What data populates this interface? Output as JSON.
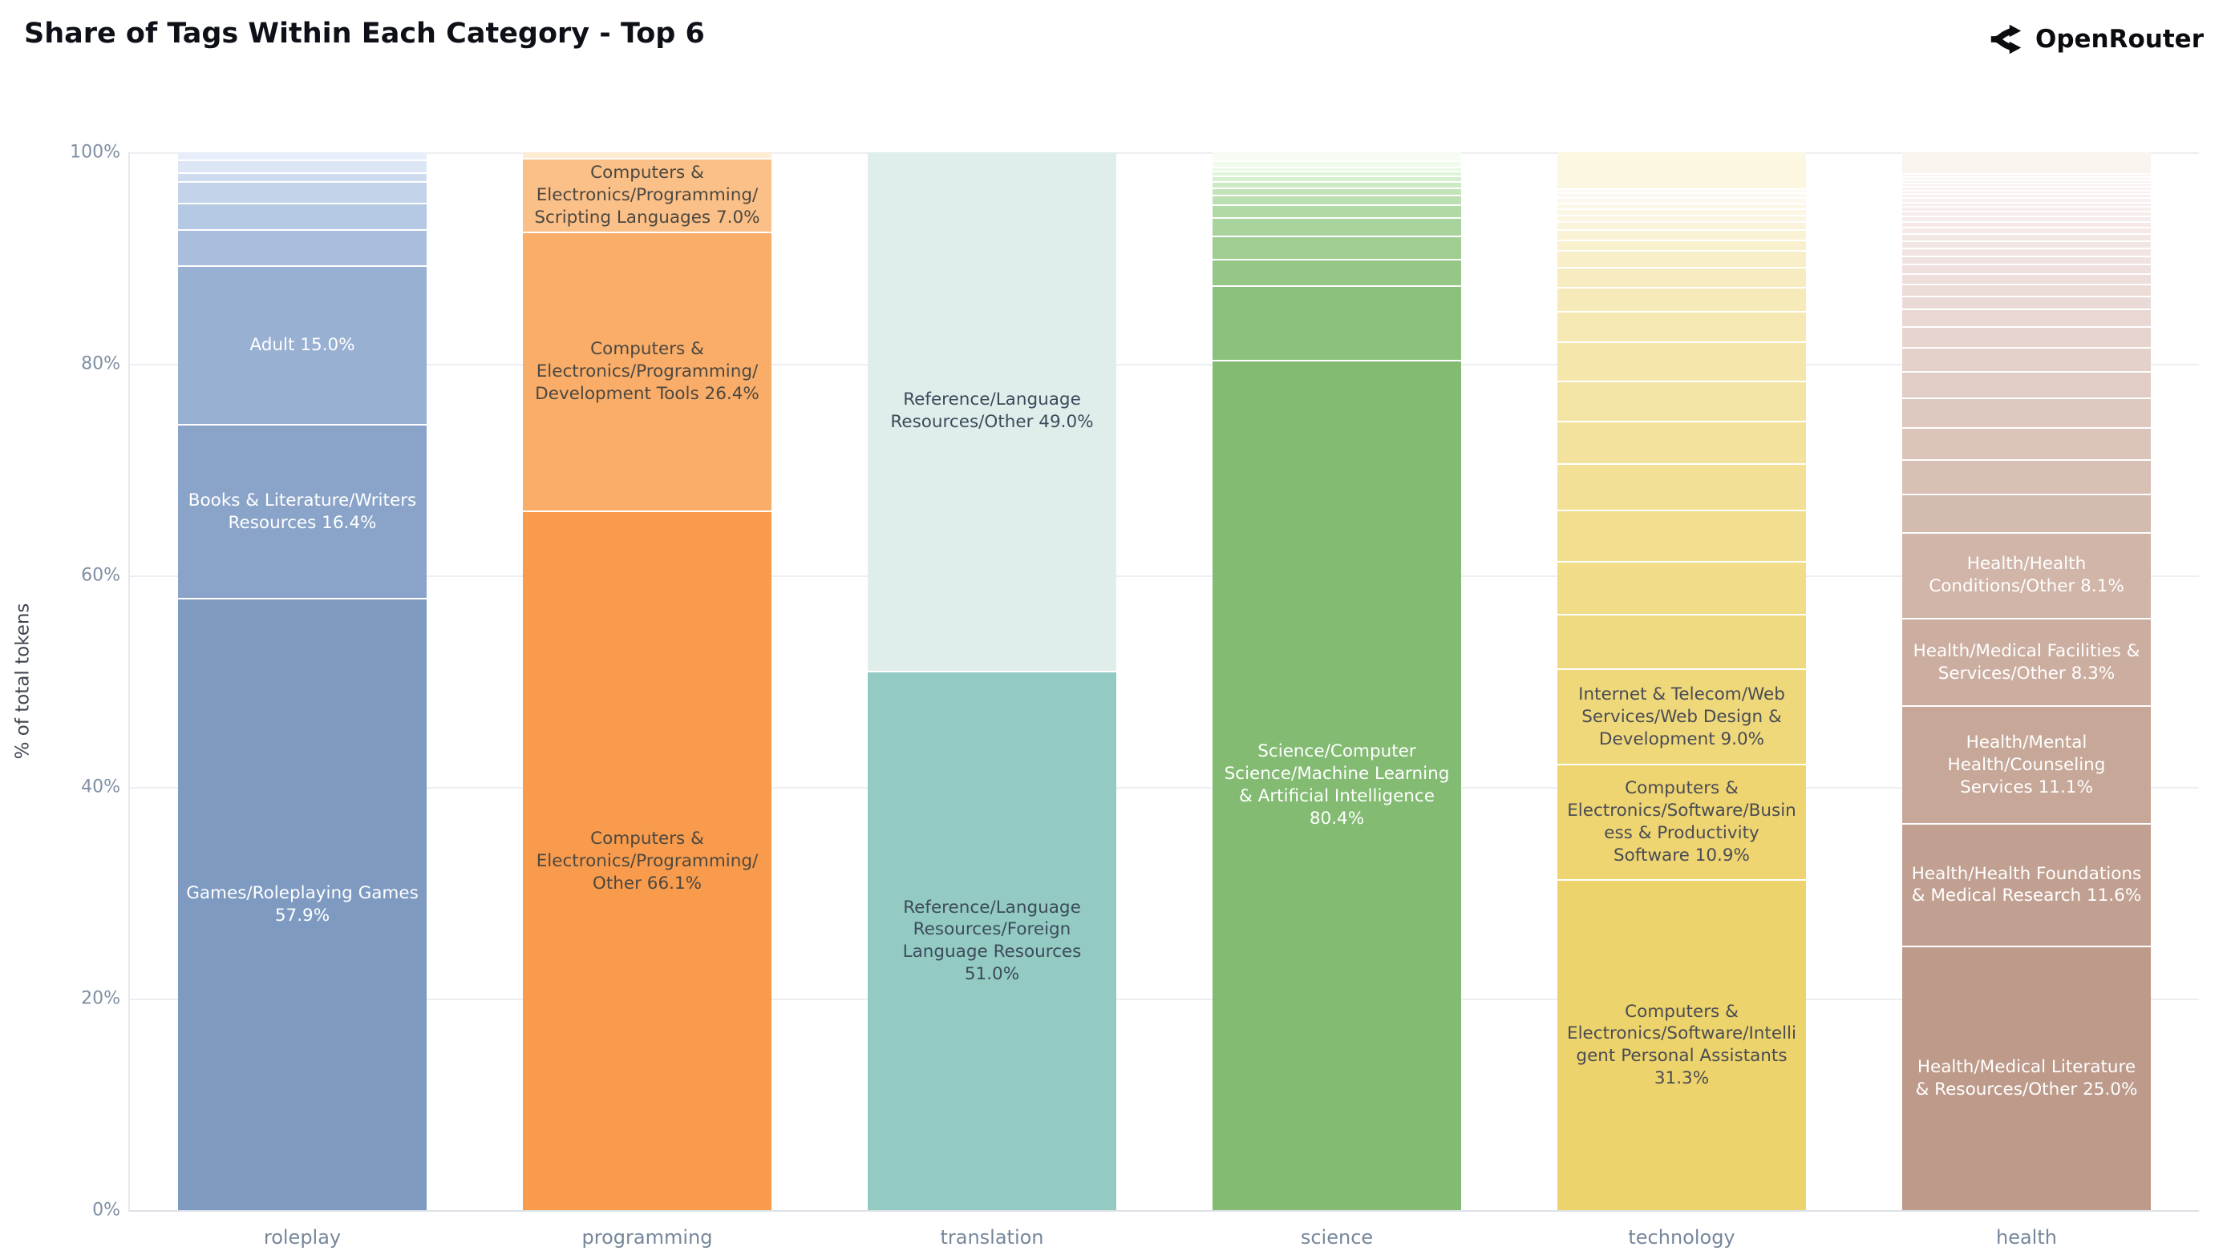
{
  "header": {
    "title": "Share of Tags Within Each Category - Top 6",
    "brand": "OpenRouter"
  },
  "axes": {
    "ylabel": "% of total tokens",
    "yticks": [
      {
        "label": "0%",
        "value": 0
      },
      {
        "label": "20%",
        "value": 20
      },
      {
        "label": "40%",
        "value": 40
      },
      {
        "label": "60%",
        "value": 60
      },
      {
        "label": "80%",
        "value": 80
      },
      {
        "label": "100%",
        "value": 100
      }
    ],
    "gridline_values": [
      20,
      40,
      60,
      80,
      100
    ]
  },
  "colors": {
    "background": "#ffffff",
    "gridline": "#eceef3",
    "separator": "#ffffff",
    "tick_text": "#7f8fa4",
    "category_text": "#76879b",
    "title_text": "#0d1117"
  },
  "chart_data": {
    "type": "bar",
    "stacked": true,
    "normalized_percent": true,
    "title": "Share of Tags Within Each Category - Top 6",
    "ylabel": "% of total tokens",
    "ylim": [
      0,
      100
    ],
    "grid": true,
    "legend": false,
    "categories": [
      "roleplay",
      "programming",
      "translation",
      "science",
      "technology",
      "health"
    ],
    "note": "Segments listed bottom-to-top. Unlabeled segment values estimated from pixel heights.",
    "bars": [
      {
        "category": "roleplay",
        "segments": [
          {
            "label": "Games/Roleplaying Games 57.9%",
            "value": 57.9,
            "color": "#7e9ac1",
            "text": "#ffffff"
          },
          {
            "label": "Books & Literature/Writers Resources 16.4%",
            "value": 16.4,
            "color": "#8aa4c9",
            "text": "#ffffff"
          },
          {
            "label": "Adult 15.0%",
            "value": 15.0,
            "color": "#98b0d2",
            "text": "#ffffff"
          },
          {
            "label": "",
            "value": 3.4,
            "color": "#a9bedd"
          },
          {
            "label": "",
            "value": 2.5,
            "color": "#b6c9e4"
          },
          {
            "label": "",
            "value": 2.1,
            "color": "#c3d3ea"
          },
          {
            "label": "",
            "value": 0.8,
            "color": "#cfdcef"
          },
          {
            "label": "",
            "value": 1.2,
            "color": "#dce6f4"
          },
          {
            "label": "",
            "value": 0.7,
            "color": "#e8eef9"
          }
        ]
      },
      {
        "category": "programming",
        "segments": [
          {
            "label": "Computers & Electronics/Programming/Other 66.1%",
            "value": 66.1,
            "color": "#f89b4c",
            "text": "#4d4840"
          },
          {
            "label": "Computers & Electronics/Programming/Development Tools 26.4%",
            "value": 26.4,
            "color": "#f9ad69",
            "text": "#4d4840"
          },
          {
            "label": "Computers & Electronics/Programming/Scripting Languages 7.0%",
            "value": 7.0,
            "color": "#fbc088",
            "text": "#4d4840"
          },
          {
            "label": "",
            "value": 0.5,
            "color": "#fdebd2"
          }
        ]
      },
      {
        "category": "translation",
        "segments": [
          {
            "label": "Reference/Language Resources/Foreign Language Resources 51.0%",
            "value": 51.0,
            "color": "#93cbc3",
            "text": "#3c4b5b"
          },
          {
            "label": "Reference/Language Resources/Other 49.0%",
            "value": 49.0,
            "color": "#dfeeeb",
            "text": "#3c4b5b"
          }
        ]
      },
      {
        "category": "science",
        "segments": [
          {
            "label": "Science/Computer Science/Machine Learning & Artificial Intelligence 80.4%",
            "value": 80.4,
            "color": "#83bb73",
            "text": "#ffffff"
          },
          {
            "label": "",
            "value": 7.0,
            "color": "#8cc17d"
          },
          {
            "label": "",
            "value": 2.5,
            "color": "#96c787"
          },
          {
            "label": "",
            "value": 2.2,
            "color": "#9fcd92"
          },
          {
            "label": "",
            "value": 1.8,
            "color": "#a8d39c"
          },
          {
            "label": "",
            "value": 1.2,
            "color": "#b1d9a6"
          },
          {
            "label": "",
            "value": 0.9,
            "color": "#badfb0"
          },
          {
            "label": "",
            "value": 0.7,
            "color": "#c3e4ba"
          },
          {
            "label": "",
            "value": 0.6,
            "color": "#cceac4"
          },
          {
            "label": "",
            "value": 0.5,
            "color": "#d5f0ce"
          },
          {
            "label": "",
            "value": 0.45,
            "color": "#def5d8"
          },
          {
            "label": "",
            "value": 0.4,
            "color": "#e7f9e2"
          },
          {
            "label": "",
            "value": 0.6,
            "color": "#f0fbec"
          },
          {
            "label": "",
            "value": 0.75,
            "color": "#f6fcf3"
          }
        ]
      },
      {
        "category": "technology",
        "segments": [
          {
            "label": "Computers & Electronics/Software/Intelligent Personal Assistants 31.3%",
            "value": 31.3,
            "color": "#edd36b",
            "text": "#4a4c54"
          },
          {
            "label": "Computers & Electronics/Software/Business & Productivity Software 10.9%",
            "value": 10.9,
            "color": "#eed572",
            "text": "#4a4c54"
          },
          {
            "label": "Internet & Telecom/Web Services/Web Design & Development 9.0%",
            "value": 9.0,
            "color": "#efd87a",
            "text": "#4a4c54"
          },
          {
            "label": "",
            "value": 5.2,
            "color": "#f0da81"
          },
          {
            "label": "",
            "value": 5.0,
            "color": "#f1dc88"
          },
          {
            "label": "",
            "value": 4.8,
            "color": "#f1de8f"
          },
          {
            "label": "",
            "value": 4.4,
            "color": "#f2e096"
          },
          {
            "label": "",
            "value": 4.0,
            "color": "#f3e29d"
          },
          {
            "label": "",
            "value": 3.8,
            "color": "#f4e4a4"
          },
          {
            "label": "",
            "value": 3.7,
            "color": "#f5e6ab"
          },
          {
            "label": "",
            "value": 2.9,
            "color": "#f6e8b2"
          },
          {
            "label": "",
            "value": 2.25,
            "color": "#f7eab9"
          },
          {
            "label": "",
            "value": 1.9,
            "color": "#f7ecc0"
          },
          {
            "label": "",
            "value": 1.6,
            "color": "#f8eec7"
          },
          {
            "label": "",
            "value": 1.0,
            "color": "#f9f0ce"
          },
          {
            "label": "",
            "value": 1.0,
            "color": "#faf2d5"
          },
          {
            "label": "",
            "value": 0.75,
            "color": "#fbf4dc"
          },
          {
            "label": "",
            "value": 0.6,
            "color": "#fbf5e1"
          },
          {
            "label": "",
            "value": 0.6,
            "color": "#fcf6e5"
          },
          {
            "label": "",
            "value": 0.55,
            "color": "#fcf7e9"
          },
          {
            "label": "",
            "value": 0.5,
            "color": "#fdf8ed"
          },
          {
            "label": "",
            "value": 0.45,
            "color": "#fdf9f0"
          },
          {
            "label": "",
            "value": 0.4,
            "color": "#fefaf3"
          },
          {
            "label": "",
            "value": 3.4,
            "color": "#fcf7e1"
          }
        ]
      },
      {
        "category": "health",
        "segments": [
          {
            "label": "Health/Medical Literature & Resources/Other 25.0%",
            "value": 25.0,
            "color": "#bd9a8a",
            "text": "#ffffff"
          },
          {
            "label": "Health/Health Foundations & Medical Research 11.6%",
            "value": 11.6,
            "color": "#c1a091",
            "text": "#ffffff"
          },
          {
            "label": "Health/Mental Health/Counseling Services 11.1%",
            "value": 11.1,
            "color": "#c6a798",
            "text": "#ffffff"
          },
          {
            "label": "Health/Medical Facilities & Services/Other 8.3%",
            "value": 8.3,
            "color": "#cbaea0",
            "text": "#ffffff"
          },
          {
            "label": "Health/Health Conditions/Other 8.1%",
            "value": 8.1,
            "color": "#d0b5a8",
            "text": "#ffffff"
          },
          {
            "label": "",
            "value": 3.6,
            "color": "#d4bbaf"
          },
          {
            "label": "",
            "value": 3.3,
            "color": "#d8c0b5"
          },
          {
            "label": "",
            "value": 3.0,
            "color": "#dbc5bb"
          },
          {
            "label": "",
            "value": 2.8,
            "color": "#dec9c0"
          },
          {
            "label": "",
            "value": 2.5,
            "color": "#e1cdc5"
          },
          {
            "label": "",
            "value": 2.3,
            "color": "#e4d1ca"
          },
          {
            "label": "",
            "value": 2.0,
            "color": "#e6d4ce"
          },
          {
            "label": "",
            "value": 1.6,
            "color": "#e8d7d2"
          },
          {
            "label": "",
            "value": 1.25,
            "color": "#eadad5"
          },
          {
            "label": "",
            "value": 1.1,
            "color": "#ecdcd8"
          },
          {
            "label": "",
            "value": 1.0,
            "color": "#eddedb"
          },
          {
            "label": "",
            "value": 0.9,
            "color": "#efe0dd"
          },
          {
            "label": "",
            "value": 0.8,
            "color": "#f0e2e0"
          },
          {
            "label": "",
            "value": 0.75,
            "color": "#f1e4e2"
          },
          {
            "label": "",
            "value": 0.7,
            "color": "#f2e6e4"
          },
          {
            "label": "",
            "value": 0.65,
            "color": "#f3e7e6"
          },
          {
            "label": "",
            "value": 0.6,
            "color": "#f4e9e7"
          },
          {
            "label": "",
            "value": 0.55,
            "color": "#f5eae9"
          },
          {
            "label": "",
            "value": 0.5,
            "color": "#f5ebea"
          },
          {
            "label": "",
            "value": 0.48,
            "color": "#f6eceb"
          },
          {
            "label": "",
            "value": 0.45,
            "color": "#f7edec"
          },
          {
            "label": "",
            "value": 0.42,
            "color": "#f7eeed"
          },
          {
            "label": "",
            "value": 0.4,
            "color": "#f8efee"
          },
          {
            "label": "",
            "value": 0.38,
            "color": "#f8f0ef"
          },
          {
            "label": "",
            "value": 0.36,
            "color": "#f9f1f0"
          },
          {
            "label": "",
            "value": 0.34,
            "color": "#f9f2f1"
          },
          {
            "label": "",
            "value": 0.32,
            "color": "#faf2f1"
          },
          {
            "label": "",
            "value": 0.3,
            "color": "#faf3f2"
          },
          {
            "label": "",
            "value": 0.3,
            "color": "#fbf4f3"
          },
          {
            "label": "",
            "value": 0.3,
            "color": "#fbf4f3"
          },
          {
            "label": "",
            "value": 1.95,
            "color": "#f9f4ee"
          }
        ]
      }
    ]
  }
}
